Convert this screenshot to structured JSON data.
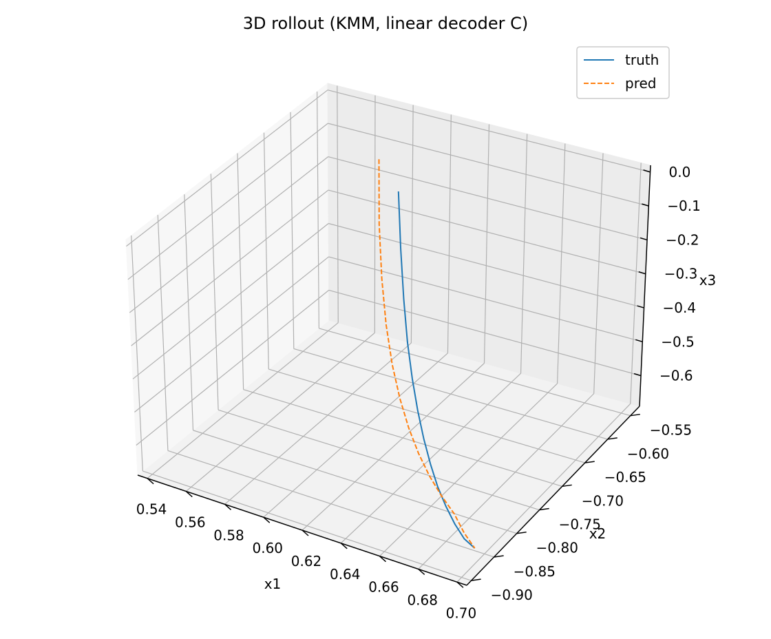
{
  "chart_data": {
    "type": "line",
    "projection": "3d",
    "title": "3D rollout (KMM, linear decoder C)",
    "xlabel": "x1",
    "ylabel": "x2",
    "zlabel": "x3",
    "xlim": [
      0.535,
      0.705
    ],
    "ylim": [
      -0.91,
      -0.53
    ],
    "zlim": [
      -0.69,
      0.02
    ],
    "xticks": [
      "0.54",
      "0.56",
      "0.58",
      "0.60",
      "0.62",
      "0.64",
      "0.66",
      "0.68",
      "0.70"
    ],
    "yticks": [
      "−0.90",
      "−0.85",
      "−0.80",
      "−0.75",
      "−0.70",
      "−0.65",
      "−0.60",
      "−0.55"
    ],
    "zticks": [
      "−0.6",
      "−0.5",
      "−0.4",
      "−0.3",
      "−0.2",
      "−0.1",
      "0.0"
    ],
    "grid": true,
    "legend_position": "top-right",
    "colors": {
      "truth": "#1f77b4",
      "pred": "#ff7f0e",
      "grid": "#b0b0b0"
    },
    "series": [
      {
        "name": "truth",
        "linestyle": "solid",
        "x": [
          0.59,
          0.599,
          0.608,
          0.617,
          0.626,
          0.635,
          0.644,
          0.653,
          0.662,
          0.671,
          0.68,
          0.689,
          0.698
        ],
        "y": [
          -0.595,
          -0.624,
          -0.652,
          -0.679,
          -0.704,
          -0.728,
          -0.751,
          -0.773,
          -0.794,
          -0.813,
          -0.831,
          -0.848,
          -0.863
        ],
        "z": [
          -0.139,
          -0.259,
          -0.358,
          -0.436,
          -0.497,
          -0.545,
          -0.583,
          -0.613,
          -0.636,
          -0.653,
          -0.664,
          -0.668,
          -0.658
        ]
      },
      {
        "name": "pred",
        "linestyle": "dashed",
        "x": [
          0.567,
          0.578,
          0.589,
          0.6,
          0.611,
          0.622,
          0.633,
          0.644,
          0.655,
          0.666,
          0.677,
          0.688,
          0.698
        ],
        "y": [
          -0.548,
          -0.588,
          -0.624,
          -0.657,
          -0.687,
          -0.714,
          -0.739,
          -0.762,
          -0.783,
          -0.802,
          -0.82,
          -0.844,
          -0.863
        ],
        "z": [
          -0.138,
          -0.264,
          -0.363,
          -0.441,
          -0.502,
          -0.549,
          -0.585,
          -0.612,
          -0.632,
          -0.646,
          -0.654,
          -0.658,
          -0.658
        ]
      }
    ]
  }
}
